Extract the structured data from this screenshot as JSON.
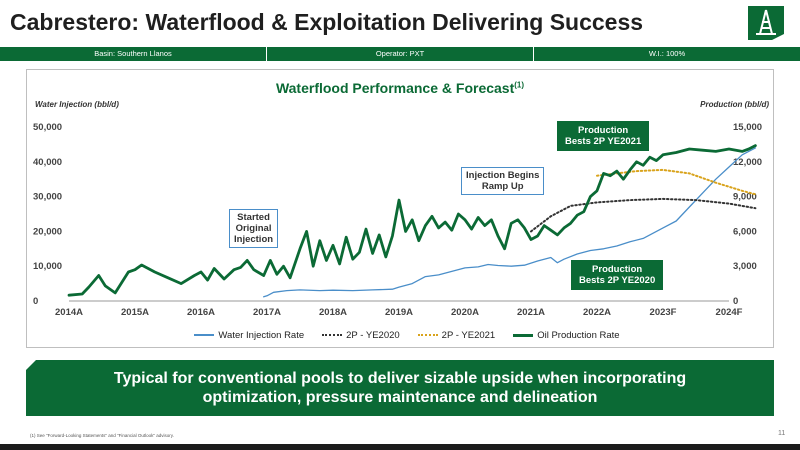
{
  "page": {
    "title": "Cabrestero: Waterflood & Exploitation Delivering Success",
    "info_bar": [
      "Basin: Southern Llanos",
      "Operator: PXT",
      "W.I.: 100%"
    ],
    "banner": [
      "Typical for conventional pools to deliver sizable upside when incorporating",
      "optimization, pressure maintenance and delineation"
    ],
    "footnote": "(1) See \"Forward-Looking Statements\" and \"Financial Outlook\" advisory.",
    "page_number": "11",
    "colors": {
      "brand_green": "#0b6a35",
      "injection_blue": "#4a8ec9",
      "forecast_2020": "#333333",
      "forecast_2021": "#d9a31c"
    }
  },
  "chart_data": {
    "type": "line",
    "title": "Waterflood Performance & Forecast",
    "title_superscript": "(1)",
    "y_left_label": "Water Injection (bbl/d)",
    "y_right_label": "Production (bbl/d)",
    "y_left_ticks": [
      "0",
      "10,000",
      "20,000",
      "30,000",
      "40,000",
      "50,000"
    ],
    "y_right_ticks": [
      "0",
      "3,000",
      "6,000",
      "9,000",
      "12,000",
      "15,000"
    ],
    "ylim_left": [
      0,
      50000
    ],
    "ylim_right": [
      0,
      15000
    ],
    "xlim": [
      2014,
      2024
    ],
    "x_ticks": [
      {
        "x": 2014,
        "label": "2014A"
      },
      {
        "x": 2015,
        "label": "2015A"
      },
      {
        "x": 2016,
        "label": "2016A"
      },
      {
        "x": 2017,
        "label": "2017A"
      },
      {
        "x": 2018,
        "label": "2018A"
      },
      {
        "x": 2019,
        "label": "2019A"
      },
      {
        "x": 2020,
        "label": "2020A"
      },
      {
        "x": 2021,
        "label": "2021A"
      },
      {
        "x": 2022,
        "label": "2022A"
      },
      {
        "x": 2023,
        "label": "2023F"
      },
      {
        "x": 2024,
        "label": "2024F"
      }
    ],
    "series": [
      {
        "name": "Water Injection Rate",
        "axis": "left",
        "color": "#4a8ec9",
        "style": "solid",
        "points": [
          [
            2016.95,
            1200
          ],
          [
            2017.0,
            1500
          ],
          [
            2017.1,
            2500
          ],
          [
            2017.3,
            3000
          ],
          [
            2017.5,
            3200
          ],
          [
            2017.8,
            3000
          ],
          [
            2018.0,
            3100
          ],
          [
            2018.3,
            3000
          ],
          [
            2018.6,
            3200
          ],
          [
            2018.9,
            3400
          ],
          [
            2019.0,
            4000
          ],
          [
            2019.2,
            5000
          ],
          [
            2019.4,
            7000
          ],
          [
            2019.6,
            7500
          ],
          [
            2019.8,
            8500
          ],
          [
            2020.0,
            9500
          ],
          [
            2020.2,
            9800
          ],
          [
            2020.35,
            10500
          ],
          [
            2020.5,
            10200
          ],
          [
            2020.7,
            10000
          ],
          [
            2020.9,
            10300
          ],
          [
            2021.1,
            11500
          ],
          [
            2021.3,
            12500
          ],
          [
            2021.4,
            11000
          ],
          [
            2021.5,
            12000
          ],
          [
            2021.7,
            13500
          ],
          [
            2021.9,
            14500
          ],
          [
            2022.1,
            15000
          ],
          [
            2022.3,
            15800
          ],
          [
            2022.5,
            17000
          ],
          [
            2022.7,
            18000
          ],
          [
            2022.9,
            20000
          ],
          [
            2023.0,
            21000
          ],
          [
            2023.2,
            23000
          ],
          [
            2023.4,
            27000
          ],
          [
            2023.6,
            31000
          ],
          [
            2023.8,
            35000
          ],
          [
            2024.0,
            38500
          ],
          [
            2024.2,
            42000
          ],
          [
            2024.4,
            44000
          ]
        ]
      },
      {
        "name": "2P - YE2020",
        "axis": "right",
        "color": "#333333",
        "style": "dotted",
        "points": [
          [
            2021.0,
            6000
          ],
          [
            2021.3,
            7300
          ],
          [
            2021.6,
            8200
          ],
          [
            2022.0,
            8500
          ],
          [
            2022.5,
            8700
          ],
          [
            2023.0,
            8800
          ],
          [
            2023.5,
            8700
          ],
          [
            2024.0,
            8400
          ],
          [
            2024.4,
            8000
          ]
        ]
      },
      {
        "name": "2P - YE2021",
        "axis": "right",
        "color": "#d9a31c",
        "style": "dotted",
        "points": [
          [
            2022.0,
            10800
          ],
          [
            2022.3,
            11000
          ],
          [
            2022.6,
            11200
          ],
          [
            2023.0,
            11300
          ],
          [
            2023.4,
            11000
          ],
          [
            2023.8,
            10200
          ],
          [
            2024.2,
            9500
          ],
          [
            2024.4,
            9200
          ]
        ]
      },
      {
        "name": "Oil Production Rate",
        "axis": "right",
        "color": "#0b6a35",
        "style": "solid",
        "points": [
          [
            2014.0,
            500
          ],
          [
            2014.2,
            600
          ],
          [
            2014.3,
            1200
          ],
          [
            2014.45,
            2200
          ],
          [
            2014.55,
            1300
          ],
          [
            2014.7,
            700
          ],
          [
            2014.9,
            2500
          ],
          [
            2015.0,
            2700
          ],
          [
            2015.1,
            3100
          ],
          [
            2015.3,
            2500
          ],
          [
            2015.5,
            2000
          ],
          [
            2015.7,
            1500
          ],
          [
            2015.9,
            2200
          ],
          [
            2016.0,
            2500
          ],
          [
            2016.1,
            1800
          ],
          [
            2016.2,
            2800
          ],
          [
            2016.35,
            1900
          ],
          [
            2016.5,
            2700
          ],
          [
            2016.6,
            2900
          ],
          [
            2016.7,
            3500
          ],
          [
            2016.8,
            2700
          ],
          [
            2016.95,
            2200
          ],
          [
            2017.05,
            3500
          ],
          [
            2017.15,
            2300
          ],
          [
            2017.25,
            3000
          ],
          [
            2017.35,
            2000
          ],
          [
            2017.5,
            4500
          ],
          [
            2017.6,
            6000
          ],
          [
            2017.7,
            3000
          ],
          [
            2017.8,
            5200
          ],
          [
            2017.9,
            3500
          ],
          [
            2018.0,
            4800
          ],
          [
            2018.1,
            3200
          ],
          [
            2018.2,
            5500
          ],
          [
            2018.3,
            3600
          ],
          [
            2018.4,
            4200
          ],
          [
            2018.5,
            6200
          ],
          [
            2018.6,
            4100
          ],
          [
            2018.7,
            5700
          ],
          [
            2018.8,
            3800
          ],
          [
            2018.9,
            5600
          ],
          [
            2019.0,
            8700
          ],
          [
            2019.1,
            6000
          ],
          [
            2019.2,
            7000
          ],
          [
            2019.3,
            5200
          ],
          [
            2019.4,
            6500
          ],
          [
            2019.5,
            7300
          ],
          [
            2019.6,
            6300
          ],
          [
            2019.7,
            6800
          ],
          [
            2019.8,
            6100
          ],
          [
            2019.9,
            7500
          ],
          [
            2020.0,
            7000
          ],
          [
            2020.1,
            6200
          ],
          [
            2020.2,
            7200
          ],
          [
            2020.3,
            6500
          ],
          [
            2020.4,
            7000
          ],
          [
            2020.5,
            5600
          ],
          [
            2020.6,
            4500
          ],
          [
            2020.7,
            6700
          ],
          [
            2020.8,
            7000
          ],
          [
            2020.9,
            6300
          ],
          [
            2021.0,
            5300
          ],
          [
            2021.1,
            5600
          ],
          [
            2021.2,
            6500
          ],
          [
            2021.3,
            6100
          ],
          [
            2021.4,
            5700
          ],
          [
            2021.5,
            6300
          ],
          [
            2021.6,
            6700
          ],
          [
            2021.7,
            7400
          ],
          [
            2021.8,
            7700
          ],
          [
            2021.9,
            9000
          ],
          [
            2022.0,
            9500
          ],
          [
            2022.1,
            11000
          ],
          [
            2022.2,
            10800
          ],
          [
            2022.3,
            11200
          ],
          [
            2022.4,
            10500
          ],
          [
            2022.5,
            11300
          ],
          [
            2022.6,
            12000
          ],
          [
            2022.7,
            11700
          ],
          [
            2022.8,
            12400
          ],
          [
            2022.9,
            12100
          ],
          [
            2023.0,
            12600
          ],
          [
            2023.2,
            12800
          ],
          [
            2023.4,
            13100
          ],
          [
            2023.6,
            13000
          ],
          [
            2023.8,
            12900
          ],
          [
            2024.0,
            13100
          ],
          [
            2024.2,
            12900
          ],
          [
            2024.3,
            13100
          ],
          [
            2024.4,
            13400
          ]
        ]
      }
    ],
    "annotations": [
      {
        "text": [
          "Started",
          "Original",
          "Injection"
        ]
      },
      {
        "text": [
          "Injection Begins",
          "Ramp Up"
        ]
      },
      {
        "text": [
          "Production",
          "Bests 2P YE2021"
        ]
      },
      {
        "text": [
          "Production",
          "Bests 2P YE2020"
        ]
      }
    ],
    "legend": {
      "placement": "bottom",
      "entries": [
        "Water Injection Rate",
        "2P - YE2020",
        "2P - YE2021",
        "Oil Production Rate"
      ]
    }
  }
}
